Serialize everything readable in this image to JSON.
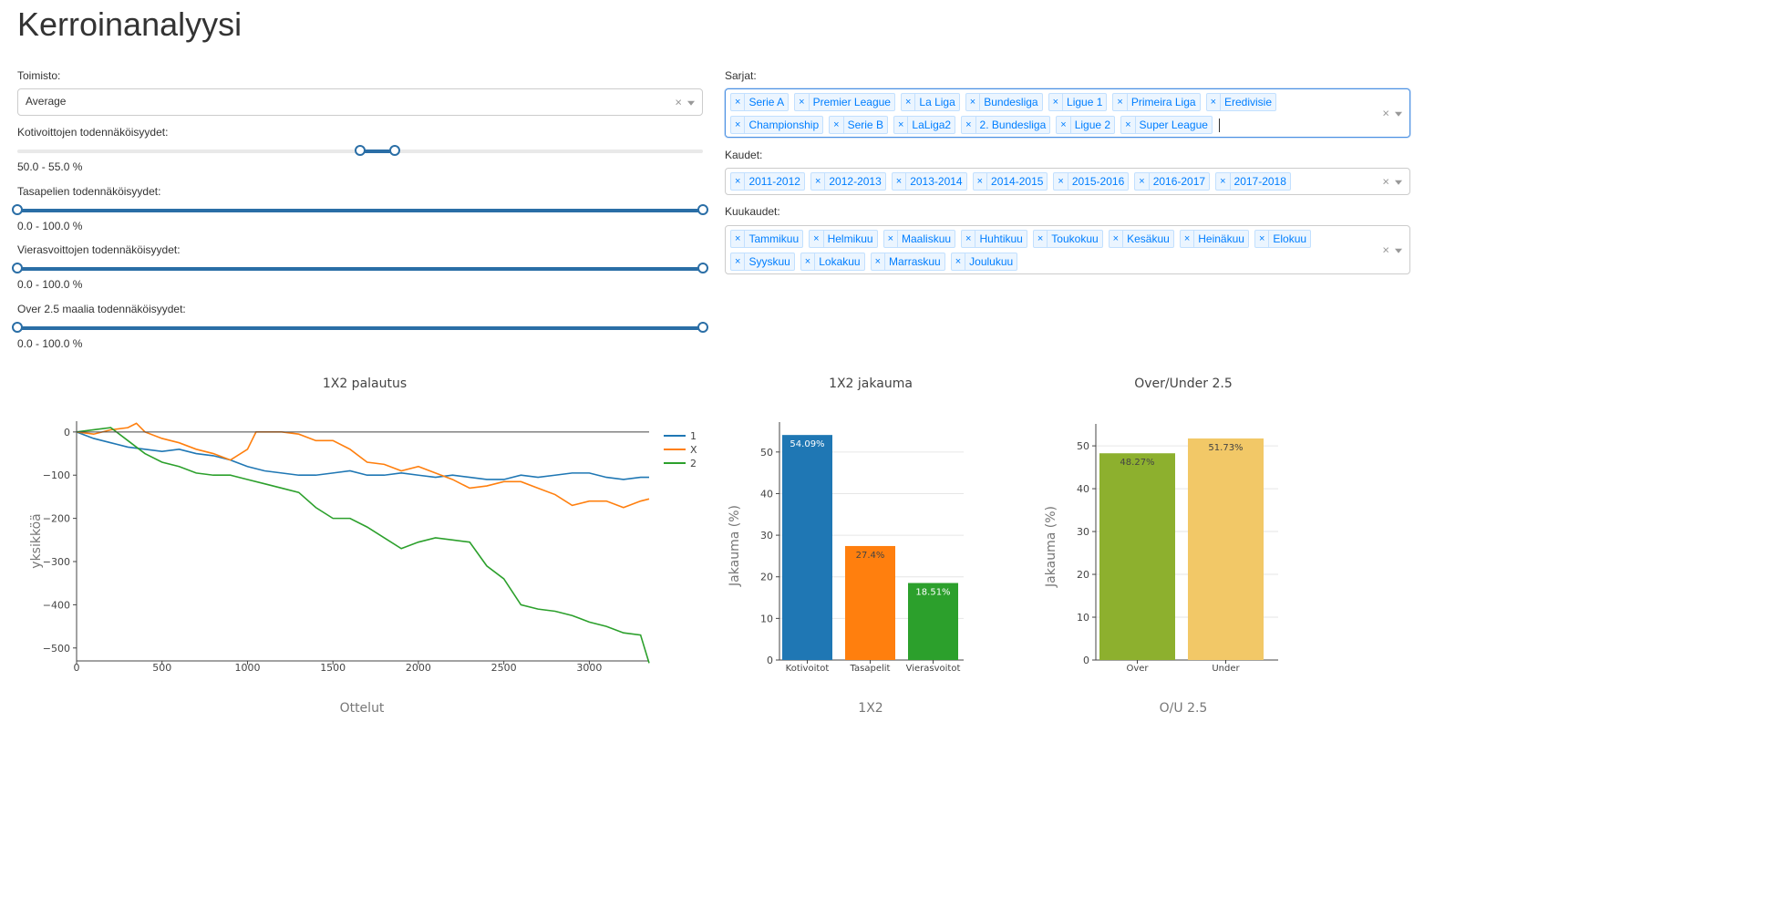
{
  "page": {
    "title": "Kerroinanalyysi"
  },
  "filters": {
    "bookmaker": {
      "label": "Toimisto:",
      "value": "Average"
    },
    "sliders": [
      {
        "label": "Kotivoittojen todennäköisyydet:",
        "range_text": "50.0 - 55.0 %",
        "min": 50.0,
        "max": 55.0
      },
      {
        "label": "Tasapelien todennäköisyydet:",
        "range_text": "0.0 - 100.0 %",
        "min": 0.0,
        "max": 100.0
      },
      {
        "label": "Vierasvoittojen todennäköisyydet:",
        "range_text": "0.0 - 100.0 %",
        "min": 0.0,
        "max": 100.0
      },
      {
        "label": "Over 2.5 maalia todennäköisyydet:",
        "range_text": "0.0 - 100.0 %",
        "min": 0.0,
        "max": 100.0
      }
    ],
    "leagues": {
      "label": "Sarjat:",
      "items": [
        "Serie A",
        "Premier League",
        "La Liga",
        "Bundesliga",
        "Ligue 1",
        "Primeira Liga",
        "Eredivisie",
        "Championship",
        "Serie B",
        "LaLiga2",
        "2. Bundesliga",
        "Ligue 2",
        "Super League"
      ]
    },
    "seasons": {
      "label": "Kaudet:",
      "items": [
        "2011-2012",
        "2012-2013",
        "2013-2014",
        "2014-2015",
        "2015-2016",
        "2016-2017",
        "2017-2018"
      ]
    },
    "months": {
      "label": "Kuukaudet:",
      "items": [
        "Tammikuu",
        "Helmikuu",
        "Maaliskuu",
        "Huhtikuu",
        "Toukokuu",
        "Kesäkuu",
        "Heinäkuu",
        "Elokuu",
        "Syyskuu",
        "Lokakuu",
        "Marraskuu",
        "Joulukuu"
      ]
    },
    "remove_glyph": "×"
  },
  "chart_data": [
    {
      "type": "line",
      "title": "1X2 palautus",
      "xlabel": "Ottelut",
      "ylabel": "yksikköä",
      "xlim": [
        0,
        3350
      ],
      "ylim": [
        -530,
        25
      ],
      "xticks": [
        0,
        500,
        1000,
        1500,
        2000,
        2500,
        3000
      ],
      "yticks": [
        0,
        -100,
        -200,
        -300,
        -400,
        -500
      ],
      "legend_position": "top-right",
      "series": [
        {
          "name": "1",
          "color": "#1f77b4",
          "x": [
            0,
            100,
            200,
            300,
            400,
            500,
            600,
            700,
            800,
            900,
            1000,
            1100,
            1200,
            1300,
            1400,
            1500,
            1600,
            1700,
            1800,
            1900,
            2000,
            2100,
            2200,
            2300,
            2400,
            2500,
            2600,
            2700,
            2800,
            2900,
            3000,
            3100,
            3200,
            3300,
            3350
          ],
          "y": [
            0,
            -15,
            -25,
            -35,
            -40,
            -45,
            -40,
            -50,
            -55,
            -65,
            -80,
            -90,
            -95,
            -100,
            -100,
            -95,
            -90,
            -100,
            -100,
            -95,
            -100,
            -105,
            -100,
            -105,
            -110,
            -110,
            -100,
            -105,
            -100,
            -95,
            -95,
            -105,
            -110,
            -105,
            -105
          ]
        },
        {
          "name": "X",
          "color": "#ff7f0e",
          "x": [
            0,
            100,
            200,
            300,
            350,
            400,
            500,
            600,
            700,
            800,
            900,
            1000,
            1050,
            1100,
            1200,
            1300,
            1400,
            1500,
            1600,
            1700,
            1800,
            1900,
            2000,
            2100,
            2200,
            2300,
            2400,
            2500,
            2600,
            2700,
            2800,
            2900,
            3000,
            3100,
            3200,
            3300,
            3350
          ],
          "y": [
            0,
            -5,
            5,
            10,
            20,
            0,
            -15,
            -25,
            -40,
            -50,
            -65,
            -40,
            0,
            0,
            0,
            -5,
            -20,
            -20,
            -40,
            -70,
            -75,
            -90,
            -80,
            -95,
            -110,
            -130,
            -125,
            -115,
            -115,
            -130,
            -145,
            -170,
            -160,
            -160,
            -175,
            -160,
            -155
          ]
        },
        {
          "name": "2",
          "color": "#2ca02c",
          "x": [
            0,
            100,
            200,
            300,
            400,
            500,
            600,
            700,
            800,
            900,
            1000,
            1100,
            1200,
            1300,
            1400,
            1500,
            1600,
            1700,
            1800,
            1900,
            2000,
            2100,
            2200,
            2300,
            2400,
            2500,
            2600,
            2700,
            2800,
            2900,
            3000,
            3100,
            3200,
            3300,
            3350
          ],
          "y": [
            0,
            5,
            10,
            -20,
            -50,
            -70,
            -80,
            -95,
            -100,
            -100,
            -110,
            -120,
            -130,
            -140,
            -175,
            -200,
            -200,
            -220,
            -245,
            -270,
            -255,
            -245,
            -250,
            -255,
            -310,
            -340,
            -400,
            -410,
            -415,
            -425,
            -440,
            -450,
            -465,
            -470,
            -535
          ]
        },
        {
          "name": "",
          "color": "#444444",
          "x": [
            0,
            3350
          ],
          "y": [
            0,
            0
          ]
        }
      ]
    },
    {
      "type": "bar",
      "title": "1X2 jakauma",
      "xlabel": "1X2",
      "ylabel": "Jakauma (%)",
      "ylim": [
        0,
        55
      ],
      "yticks": [
        0,
        10,
        20,
        30,
        40,
        50
      ],
      "categories": [
        "Kotivoitot",
        "Tasapelit",
        "Vierasvoitot"
      ],
      "values": [
        54.09,
        27.4,
        18.51
      ],
      "labels": [
        "54.09%",
        "27.4%",
        "18.51%"
      ],
      "colors": [
        "#1f77b4",
        "#ff7f0e",
        "#2ca02c"
      ]
    },
    {
      "type": "bar",
      "title": "Over/Under 2.5",
      "xlabel": "O/U 2.5",
      "ylabel": "Jakauma (%)",
      "ylim": [
        0,
        53
      ],
      "yticks": [
        0,
        10,
        20,
        30,
        40,
        50
      ],
      "categories": [
        "Over",
        "Under"
      ],
      "values": [
        48.27,
        51.73
      ],
      "labels": [
        "48.27%",
        "51.73%"
      ],
      "colors": [
        "#8db02e",
        "#f2c867"
      ]
    }
  ]
}
